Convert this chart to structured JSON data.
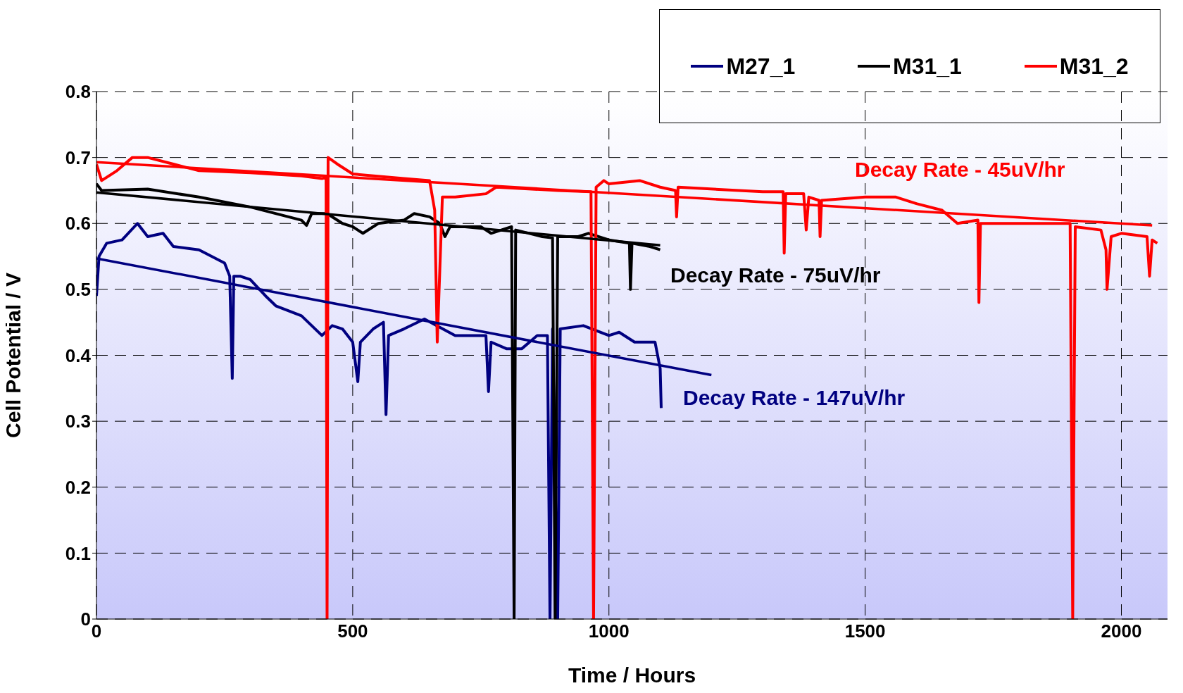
{
  "chart_data": {
    "type": "line",
    "xlabel": "Time / Hours",
    "ylabel": "Cell Potential / V",
    "xlim": [
      0,
      2090
    ],
    "xticks": [
      0,
      500,
      1000,
      1500,
      2000
    ],
    "ylim": [
      0,
      0.8
    ],
    "yticks": [
      0,
      0.1,
      0.2,
      0.3,
      0.4,
      0.5,
      0.6,
      0.7,
      0.8
    ],
    "grid": true,
    "legend": "top right",
    "line_style": "solid",
    "series": [
      {
        "name": "M27_1",
        "color": "#000080",
        "x": [
          0,
          5,
          20,
          50,
          80,
          100,
          130,
          150,
          200,
          250,
          260,
          265,
          268,
          280,
          300,
          330,
          350,
          400,
          440,
          460,
          480,
          500,
          510,
          515,
          540,
          560,
          565,
          570,
          600,
          640,
          700,
          760,
          765,
          770,
          800,
          830,
          860,
          880,
          885,
          890,
          900,
          905,
          950,
          1000,
          1020,
          1050,
          1090,
          1100,
          1102
        ],
        "values": [
          0.49,
          0.55,
          0.57,
          0.575,
          0.6,
          0.58,
          0.585,
          0.565,
          0.56,
          0.54,
          0.52,
          0.365,
          0.52,
          0.52,
          0.515,
          0.49,
          0.475,
          0.46,
          0.43,
          0.445,
          0.44,
          0.42,
          0.36,
          0.42,
          0.44,
          0.45,
          0.31,
          0.43,
          0.44,
          0.455,
          0.43,
          0.43,
          0.345,
          0.42,
          0.41,
          0.41,
          0.43,
          0.43,
          0,
          0.44,
          0,
          0.44,
          0.445,
          0.43,
          0.435,
          0.42,
          0.42,
          0.38,
          0.32
        ]
      },
      {
        "name": "M31_1",
        "color": "#000000",
        "x": [
          0,
          10,
          100,
          200,
          300,
          400,
          410,
          420,
          450,
          480,
          500,
          520,
          550,
          600,
          620,
          650,
          670,
          680,
          690,
          750,
          770,
          810,
          815,
          818,
          870,
          890,
          895,
          900,
          940,
          960,
          1000,
          1040,
          1042,
          1045,
          1080,
          1100
        ],
        "values": [
          0.66,
          0.65,
          0.652,
          0.64,
          0.625,
          0.605,
          0.597,
          0.615,
          0.615,
          0.6,
          0.595,
          0.585,
          0.6,
          0.605,
          0.615,
          0.61,
          0.6,
          0.58,
          0.595,
          0.595,
          0.585,
          0.595,
          0,
          0.59,
          0.58,
          0.578,
          0,
          0.58,
          0.58,
          0.585,
          0.575,
          0.57,
          0.5,
          0.57,
          0.565,
          0.56
        ]
      },
      {
        "name": "M31_2",
        "color": "#ff0000",
        "x": [
          0,
          10,
          40,
          70,
          100,
          150,
          200,
          300,
          400,
          440,
          448,
          450,
          452,
          470,
          500,
          600,
          650,
          660,
          665,
          675,
          700,
          760,
          780,
          900,
          965,
          970,
          975,
          990,
          1000,
          1060,
          1100,
          1130,
          1132,
          1135,
          1300,
          1340,
          1342,
          1345,
          1380,
          1385,
          1390,
          1410,
          1412,
          1415,
          1500,
          1560,
          1600,
          1650,
          1680,
          1720,
          1722,
          1725,
          1800,
          1900,
          1905,
          1910,
          1960,
          1970,
          1972,
          1980,
          2000,
          2050,
          2055,
          2060,
          2070
        ],
        "values": [
          0.69,
          0.665,
          0.68,
          0.7,
          0.7,
          0.69,
          0.68,
          0.677,
          0.672,
          0.668,
          0.67,
          0,
          0.7,
          0.69,
          0.675,
          0.668,
          0.665,
          0.62,
          0.42,
          0.64,
          0.64,
          0.645,
          0.655,
          0.65,
          0.648,
          0,
          0.655,
          0.665,
          0.66,
          0.665,
          0.655,
          0.65,
          0.61,
          0.655,
          0.648,
          0.648,
          0.555,
          0.645,
          0.645,
          0.59,
          0.64,
          0.635,
          0.58,
          0.635,
          0.64,
          0.64,
          0.63,
          0.62,
          0.6,
          0.605,
          0.48,
          0.6,
          0.6,
          0.6,
          0,
          0.595,
          0.59,
          0.56,
          0.5,
          0.58,
          0.585,
          0.58,
          0.52,
          0.575,
          0.57
        ]
      },
      {
        "type": "line",
        "color": "#000080",
        "x": [
          0,
          1200
        ],
        "values": [
          0.547,
          0.37
        ]
      },
      {
        "type": "line",
        "color": "#000000",
        "x": [
          0,
          1100
        ],
        "values": [
          0.647,
          0.567
        ]
      },
      {
        "type": "line",
        "color": "#ff0000",
        "x": [
          0,
          2060
        ],
        "values": [
          0.693,
          0.597
        ]
      }
    ],
    "annotations": [
      "Decay Rate - 147uV/hr",
      "Decay Rate - 75uV/hr",
      "Decay Rate - 45uV/hr"
    ]
  }
}
